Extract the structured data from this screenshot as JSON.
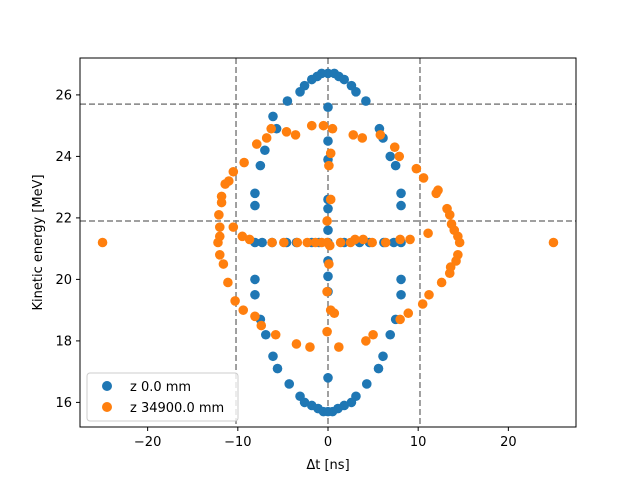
{
  "chart_data": {
    "type": "scatter",
    "xlabel": "Δt [ns]",
    "ylabel": "Kinetic energy [MeV]",
    "xlim": [
      -27.5,
      27.5
    ],
    "ylim": [
      15.2,
      27.2
    ],
    "xticks": [
      -20,
      -10,
      0,
      10,
      20
    ],
    "xtick_labels": [
      "−20",
      "−10",
      "0",
      "10",
      "20"
    ],
    "yticks": [
      16,
      18,
      20,
      22,
      24,
      26
    ],
    "ytick_labels": [
      "16",
      "18",
      "20",
      "22",
      "24",
      "26"
    ],
    "grid": false,
    "legend_position": "lower-left",
    "reference_lines": {
      "vertical_x": [
        -10.2,
        0,
        10.2
      ],
      "horizontal_y": [
        21.9,
        25.7
      ],
      "style": "dashed",
      "color": "#808080"
    },
    "series": [
      {
        "name": "z 0.0 mm",
        "color": "#1f77b4",
        "points": [
          [
            0,
            26.7
          ],
          [
            0.7,
            26.7
          ],
          [
            -0.7,
            26.7
          ],
          [
            1.2,
            26.6
          ],
          [
            -1.2,
            26.6
          ],
          [
            1.8,
            26.5
          ],
          [
            -1.8,
            26.5
          ],
          [
            2.6,
            26.3
          ],
          [
            -2.6,
            26.3
          ],
          [
            3.1,
            26.1
          ],
          [
            -3.1,
            26.1
          ],
          [
            4.2,
            25.8
          ],
          [
            -4.5,
            25.8
          ],
          [
            5.7,
            24.9
          ],
          [
            -5.7,
            24.9
          ],
          [
            6.1,
            24.6
          ],
          [
            -6.1,
            25.3
          ],
          [
            6.9,
            24.0
          ],
          [
            -7.0,
            24.2
          ],
          [
            7.5,
            23.7
          ],
          [
            -7.5,
            23.7
          ],
          [
            8.1,
            22.8
          ],
          [
            -8.1,
            22.8
          ],
          [
            8.1,
            22.4
          ],
          [
            -8.1,
            22.4
          ],
          [
            8.1,
            21.2
          ],
          [
            -8.1,
            21.2
          ],
          [
            7.3,
            21.2
          ],
          [
            -7.3,
            21.2
          ],
          [
            8.1,
            20.0
          ],
          [
            -8.1,
            20.0
          ],
          [
            8.1,
            19.5
          ],
          [
            -8.1,
            19.5
          ],
          [
            7.5,
            18.7
          ],
          [
            -7.5,
            18.7
          ],
          [
            6.9,
            18.2
          ],
          [
            -6.9,
            18.2
          ],
          [
            6.1,
            17.5
          ],
          [
            -6.1,
            17.5
          ],
          [
            5.6,
            17.1
          ],
          [
            -5.6,
            17.1
          ],
          [
            4.3,
            16.6
          ],
          [
            -4.3,
            16.6
          ],
          [
            3.1,
            16.2
          ],
          [
            -3.1,
            16.2
          ],
          [
            2.6,
            16.0
          ],
          [
            -2.6,
            16.0
          ],
          [
            1.8,
            15.9
          ],
          [
            -1.8,
            15.9
          ],
          [
            1.1,
            15.8
          ],
          [
            -1.1,
            15.8
          ],
          [
            0.5,
            15.7
          ],
          [
            -0.5,
            15.7
          ],
          [
            0,
            15.7
          ],
          [
            0,
            25.6
          ],
          [
            0,
            24.5
          ],
          [
            0,
            23.9
          ],
          [
            0,
            22.6
          ],
          [
            0,
            22.3
          ],
          [
            0,
            21.6
          ],
          [
            0,
            21.2
          ],
          [
            0,
            20.6
          ],
          [
            0,
            20.1
          ],
          [
            0,
            19.6
          ],
          [
            0,
            16.8
          ],
          [
            1.8,
            21.2
          ],
          [
            -1.8,
            21.2
          ],
          [
            3.5,
            21.2
          ],
          [
            -3.5,
            21.2
          ],
          [
            4.6,
            21.2
          ],
          [
            -4.6,
            21.2
          ],
          [
            6.2,
            21.2
          ],
          [
            -6.2,
            21.2
          ],
          [
            -1.0,
            21.2
          ]
        ]
      },
      {
        "name": "z 34900.0 mm",
        "color": "#ff7f0e",
        "points": [
          [
            -25.0,
            21.2
          ],
          [
            25.0,
            21.2
          ],
          [
            -0.5,
            25.0
          ],
          [
            0.5,
            24.9
          ],
          [
            -1.8,
            25.0
          ],
          [
            2.8,
            24.7
          ],
          [
            -3.6,
            24.7
          ],
          [
            3.8,
            24.6
          ],
          [
            -4.6,
            24.8
          ],
          [
            5.8,
            24.7
          ],
          [
            -6.3,
            24.9
          ],
          [
            -6.8,
            24.6
          ],
          [
            7.4,
            24.3
          ],
          [
            -7.9,
            24.4
          ],
          [
            7.9,
            24.0
          ],
          [
            -9.3,
            23.8
          ],
          [
            9.8,
            23.6
          ],
          [
            -10.5,
            23.5
          ],
          [
            10.6,
            23.3
          ],
          [
            -11.0,
            23.2
          ],
          [
            -11.4,
            23.1
          ],
          [
            12.0,
            22.8
          ],
          [
            12.2,
            22.9
          ],
          [
            -11.8,
            22.7
          ],
          [
            -11.8,
            22.5
          ],
          [
            13.2,
            22.3
          ],
          [
            -12.1,
            22.1
          ],
          [
            13.5,
            22.1
          ],
          [
            -12.0,
            21.7
          ],
          [
            13.7,
            21.8
          ],
          [
            -12.0,
            21.4
          ],
          [
            14.0,
            21.6
          ],
          [
            -12.2,
            21.2
          ],
          [
            14.4,
            21.4
          ],
          [
            -12.0,
            20.8
          ],
          [
            14.6,
            21.2
          ],
          [
            -11.6,
            20.5
          ],
          [
            14.4,
            20.8
          ],
          [
            -11.1,
            19.9
          ],
          [
            14.2,
            20.6
          ],
          [
            13.6,
            20.4
          ],
          [
            -10.3,
            19.3
          ],
          [
            13.5,
            20.2
          ],
          [
            -9.4,
            19.0
          ],
          [
            12.6,
            19.9
          ],
          [
            -8.1,
            18.8
          ],
          [
            11.2,
            19.5
          ],
          [
            -7.4,
            18.5
          ],
          [
            10.5,
            19.2
          ],
          [
            -5.8,
            18.2
          ],
          [
            8.9,
            18.9
          ],
          [
            -3.5,
            17.9
          ],
          [
            8.0,
            18.7
          ],
          [
            -2.0,
            17.8
          ],
          [
            5.0,
            18.2
          ],
          [
            1.2,
            17.8
          ],
          [
            4.2,
            18.0
          ],
          [
            -0.1,
            18.3
          ],
          [
            0.7,
            18.9
          ],
          [
            0.3,
            19.0
          ],
          [
            -0.1,
            19.6
          ],
          [
            0.1,
            20.5
          ],
          [
            0.2,
            21.1
          ],
          [
            -0.1,
            21.9
          ],
          [
            0.3,
            22.6
          ],
          [
            0.1,
            23.7
          ],
          [
            0.3,
            24.1
          ],
          [
            -10.5,
            21.7
          ],
          [
            11.1,
            21.5
          ],
          [
            -9.5,
            21.4
          ],
          [
            9.1,
            21.3
          ],
          [
            -8.7,
            21.3
          ],
          [
            8.0,
            21.3
          ],
          [
            -6.2,
            21.2
          ],
          [
            6.4,
            21.2
          ],
          [
            -4.9,
            21.2
          ],
          [
            4.9,
            21.2
          ],
          [
            -3.4,
            21.2
          ],
          [
            3.9,
            21.3
          ],
          [
            -2.3,
            21.2
          ],
          [
            3.0,
            21.3
          ],
          [
            -0.7,
            21.2
          ],
          [
            1.4,
            21.2
          ],
          [
            -0.1,
            21.2
          ],
          [
            2.5,
            21.2
          ],
          [
            -1.4,
            21.2
          ]
        ]
      }
    ]
  }
}
